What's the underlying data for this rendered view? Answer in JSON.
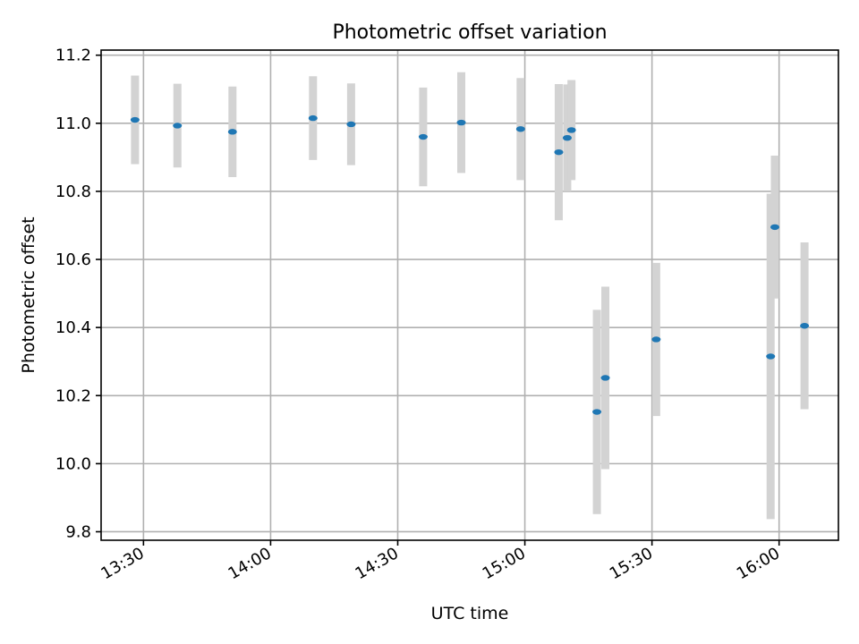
{
  "chart_data": {
    "type": "scatter",
    "title": "Photometric offset variation",
    "xlabel": "UTC time",
    "ylabel": "Photometric offset",
    "x_axis": {
      "type": "time",
      "xlim": [
        "13:20",
        "16:14"
      ],
      "ticks": [
        "13:30",
        "14:00",
        "14:30",
        "15:00",
        "15:30",
        "16:00"
      ]
    },
    "y_axis": {
      "ylim": [
        9.775,
        11.215
      ],
      "ticks": [
        "9.8",
        "10.0",
        "10.2",
        "10.4",
        "10.6",
        "10.8",
        "11.0",
        "11.2"
      ]
    },
    "grid": true,
    "marker_color": "#1f77b4",
    "errorbar_color": "#d3d3d3",
    "series": [
      {
        "points": [
          {
            "time": "13:28",
            "y": 11.01,
            "err": 0.13
          },
          {
            "time": "13:38",
            "y": 10.993,
            "err": 0.123
          },
          {
            "time": "13:51",
            "y": 10.975,
            "err": 0.133
          },
          {
            "time": "14:10",
            "y": 11.015,
            "err": 0.123
          },
          {
            "time": "14:19",
            "y": 10.997,
            "err": 0.12
          },
          {
            "time": "14:36",
            "y": 10.96,
            "err": 0.145
          },
          {
            "time": "14:45",
            "y": 11.002,
            "err": 0.148
          },
          {
            "time": "14:59",
            "y": 10.983,
            "err": 0.15
          },
          {
            "time": "15:08",
            "y": 10.915,
            "err": 0.2
          },
          {
            "time": "15:10",
            "y": 10.957,
            "err": 0.157
          },
          {
            "time": "15:11",
            "y": 10.98,
            "err": 0.147
          },
          {
            "time": "15:17",
            "y": 10.152,
            "err": 0.3
          },
          {
            "time": "15:19",
            "y": 10.252,
            "err": 0.268
          },
          {
            "time": "15:31",
            "y": 10.365,
            "err": 0.225
          },
          {
            "time": "15:58",
            "y": 10.315,
            "err": 0.478
          },
          {
            "time": "15:59",
            "y": 10.695,
            "err": 0.21
          },
          {
            "time": "16:06",
            "y": 10.405,
            "err": 0.245
          }
        ]
      }
    ]
  }
}
